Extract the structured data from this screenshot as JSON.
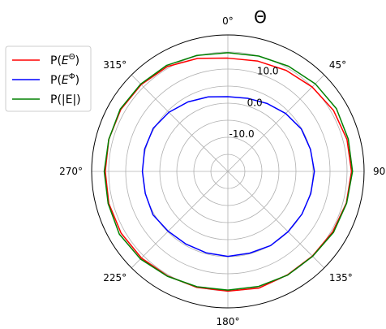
{
  "chart_data": {
    "type": "line",
    "projection": "polar",
    "title": "Θ",
    "theta_zero_location": "N",
    "theta_direction": "clockwise",
    "angle_ticks": [
      {
        "deg": 0,
        "label": "0°"
      },
      {
        "deg": 45,
        "label": "45°"
      },
      {
        "deg": 90,
        "label": "90°"
      },
      {
        "deg": 135,
        "label": "135°"
      },
      {
        "deg": 180,
        "label": "180°"
      },
      {
        "deg": 225,
        "label": "225°"
      },
      {
        "deg": 270,
        "label": "270°"
      },
      {
        "deg": 315,
        "label": "315°"
      }
    ],
    "rlim": [
      -20,
      20
    ],
    "r_ticks": [
      {
        "value": -10,
        "label": "-10.0"
      },
      {
        "value": 0,
        "label": "0.0"
      },
      {
        "value": 10,
        "label": "10.0"
      }
    ],
    "r_gridlines": [
      -15,
      -10,
      -5,
      0,
      5,
      10,
      15
    ],
    "angle_gridlines": [
      0,
      45,
      90,
      135,
      180,
      225,
      270,
      315
    ],
    "legend_position": "outside upper left",
    "legend": [
      {
        "label": "P(",
        "sup": "Θ",
        "post": ")",
        "color": "#ff0000"
      },
      {
        "label": "P(",
        "sup": "Φ",
        "post": ")",
        "color": "#0000ff"
      },
      {
        "label": "P(|E|)",
        "sup": "",
        "post": "",
        "color": "#008000"
      }
    ],
    "theta": [
      0,
      15,
      30,
      45,
      60,
      75,
      90,
      105,
      120,
      135,
      150,
      165,
      180,
      195,
      210,
      225,
      240,
      255,
      270,
      285,
      300,
      315,
      330,
      345,
      360
    ],
    "series": [
      {
        "name": "P(E^Θ)",
        "color": "#ff0000",
        "r": [
          13.2,
          13.5,
          14.2,
          15.0,
          15.8,
          16.2,
          16.3,
          16.0,
          15.5,
          15.1,
          15.0,
          15.4,
          15.1,
          15.2,
          15.4,
          15.9,
          16.2,
          16.2,
          16.0,
          16.2,
          16.3,
          16.0,
          15.5,
          14.3,
          13.2
        ]
      },
      {
        "name": "P(E^Φ)",
        "color": "#0000ff",
        "r": [
          1.9,
          2.2,
          3.0,
          4.0,
          4.9,
          5.1,
          5.4,
          5.2,
          5.1,
          5.0,
          5.1,
          4.8,
          4.9,
          4.7,
          4.6,
          4.8,
          5.4,
          5.1,
          5.1,
          5.3,
          5.3,
          4.5,
          3.5,
          2.6,
          1.9
        ]
      },
      {
        "name": "P(|E|)",
        "color": "#008000",
        "r": [
          14.8,
          15.0,
          15.6,
          16.3,
          16.8,
          16.6,
          16.6,
          16.1,
          15.8,
          15.2,
          15.1,
          14.9,
          14.8,
          15.0,
          15.5,
          16.3,
          16.8,
          16.4,
          16.3,
          16.2,
          16.5,
          16.2,
          15.9,
          15.2,
          14.8
        ]
      }
    ]
  }
}
